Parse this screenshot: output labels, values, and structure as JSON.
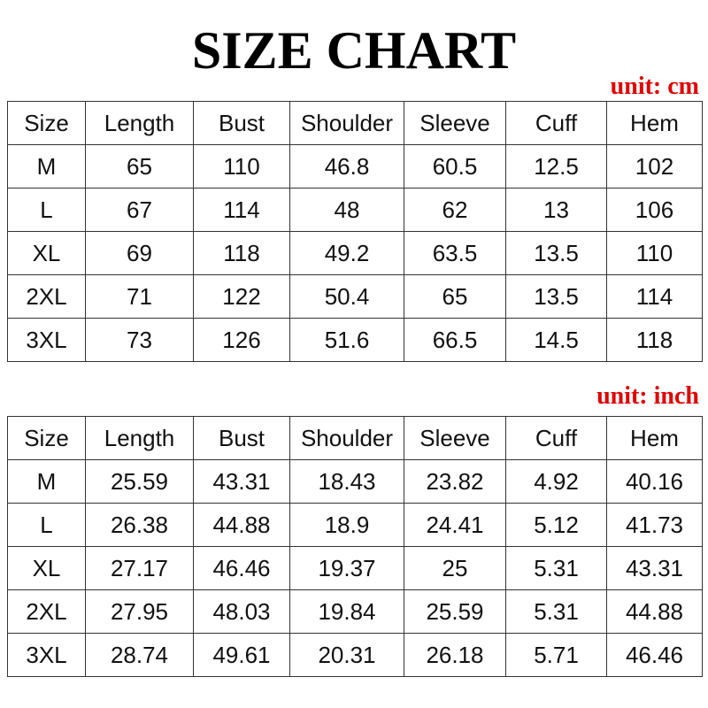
{
  "title": "SIZE CHART",
  "columns": [
    "Size",
    "Length",
    "Bust",
    "Shoulder",
    "Sleeve",
    "Cuff",
    "Hem"
  ],
  "cm": {
    "unit_label": "unit: cm",
    "rows": [
      [
        "M",
        "65",
        "110",
        "46.8",
        "60.5",
        "12.5",
        "102"
      ],
      [
        "L",
        "67",
        "114",
        "48",
        "62",
        "13",
        "106"
      ],
      [
        "XL",
        "69",
        "118",
        "49.2",
        "63.5",
        "13.5",
        "110"
      ],
      [
        "2XL",
        "71",
        "122",
        "50.4",
        "65",
        "13.5",
        "114"
      ],
      [
        "3XL",
        "73",
        "126",
        "51.6",
        "66.5",
        "14.5",
        "118"
      ]
    ]
  },
  "inch": {
    "unit_label": "unit: inch",
    "rows": [
      [
        "M",
        "25.59",
        "43.31",
        "18.43",
        "23.82",
        "4.92",
        "40.16"
      ],
      [
        "L",
        "26.38",
        "44.88",
        "18.9",
        "24.41",
        "5.12",
        "41.73"
      ],
      [
        "XL",
        "27.17",
        "46.46",
        "19.37",
        "25",
        "5.31",
        "43.31"
      ],
      [
        "2XL",
        "27.95",
        "48.03",
        "19.84",
        "25.59",
        "5.31",
        "44.88"
      ],
      [
        "3XL",
        "28.74",
        "49.61",
        "20.31",
        "26.18",
        "5.71",
        "46.46"
      ]
    ]
  },
  "colors": {
    "unit_label": "#e00000",
    "text": "#111111"
  }
}
